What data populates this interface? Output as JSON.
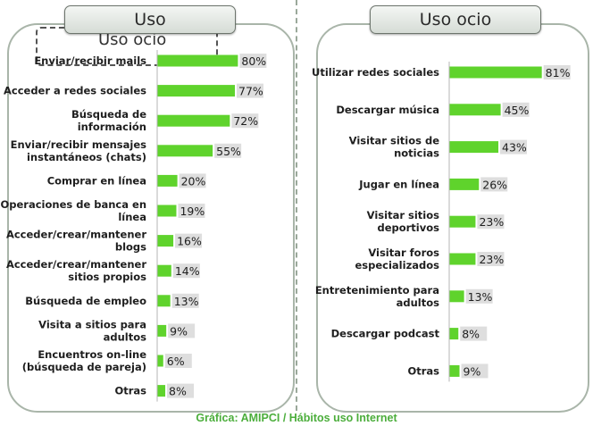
{
  "caption": "Gráfica: AMIPCI / Hábitos uso Internet",
  "colors": {
    "bar": "#5fd32c",
    "panel_border": "#a9b5a9",
    "caption": "#4cae3c"
  },
  "chart_data": [
    {
      "type": "bar",
      "orientation": "horizontal",
      "title": "Uso",
      "categories": [
        [
          "Enviar/recibir mails"
        ],
        [
          "Acceder a redes sociales"
        ],
        [
          "Búsqueda de",
          "información"
        ],
        [
          "Enviar/recibir mensajes",
          "instantáneos (chats)"
        ],
        [
          "Comprar en línea"
        ],
        [
          "Operaciones de banca en",
          "línea"
        ],
        [
          "Acceder/crear/mantener",
          "blogs"
        ],
        [
          "Acceder/crear/mantener",
          "sitios propios"
        ],
        [
          "Búsqueda de empleo"
        ],
        [
          "Visita a sitios para",
          "adultos"
        ],
        [
          "Encuentros on-line",
          "(búsqueda de pareja)"
        ],
        [
          "Otras"
        ]
      ],
      "values": [
        80,
        77,
        72,
        55,
        20,
        19,
        16,
        14,
        13,
        9,
        6,
        8
      ],
      "value_labels": [
        "80%",
        "77%",
        "72%",
        "55%",
        "20%",
        "19%",
        "16%",
        "14%",
        "13%",
        "9%",
        "6%",
        "8%"
      ],
      "xlim": [
        0,
        100
      ]
    },
    {
      "type": "bar",
      "orientation": "horizontal",
      "title": "Uso ocio",
      "categories": [
        [
          "Utilizar redes sociales"
        ],
        [
          "Descargar música"
        ],
        [
          "Visitar sitios de",
          "noticias"
        ],
        [
          "Jugar en línea"
        ],
        [
          "Visitar sitios",
          "deportivos"
        ],
        [
          "Visitar foros",
          "especializados"
        ],
        [
          "Entretenimiento para",
          "adultos"
        ],
        [
          "Descargar podcast"
        ],
        [
          "Otras"
        ]
      ],
      "values": [
        81,
        45,
        43,
        26,
        23,
        23,
        13,
        8,
        9
      ],
      "value_labels": [
        "81%",
        "45%",
        "43%",
        "26%",
        "23%",
        "23%",
        "13%",
        "8%",
        "9%"
      ],
      "xlim": [
        0,
        100
      ]
    }
  ],
  "overlay_ghost_title": "Uso ocio"
}
